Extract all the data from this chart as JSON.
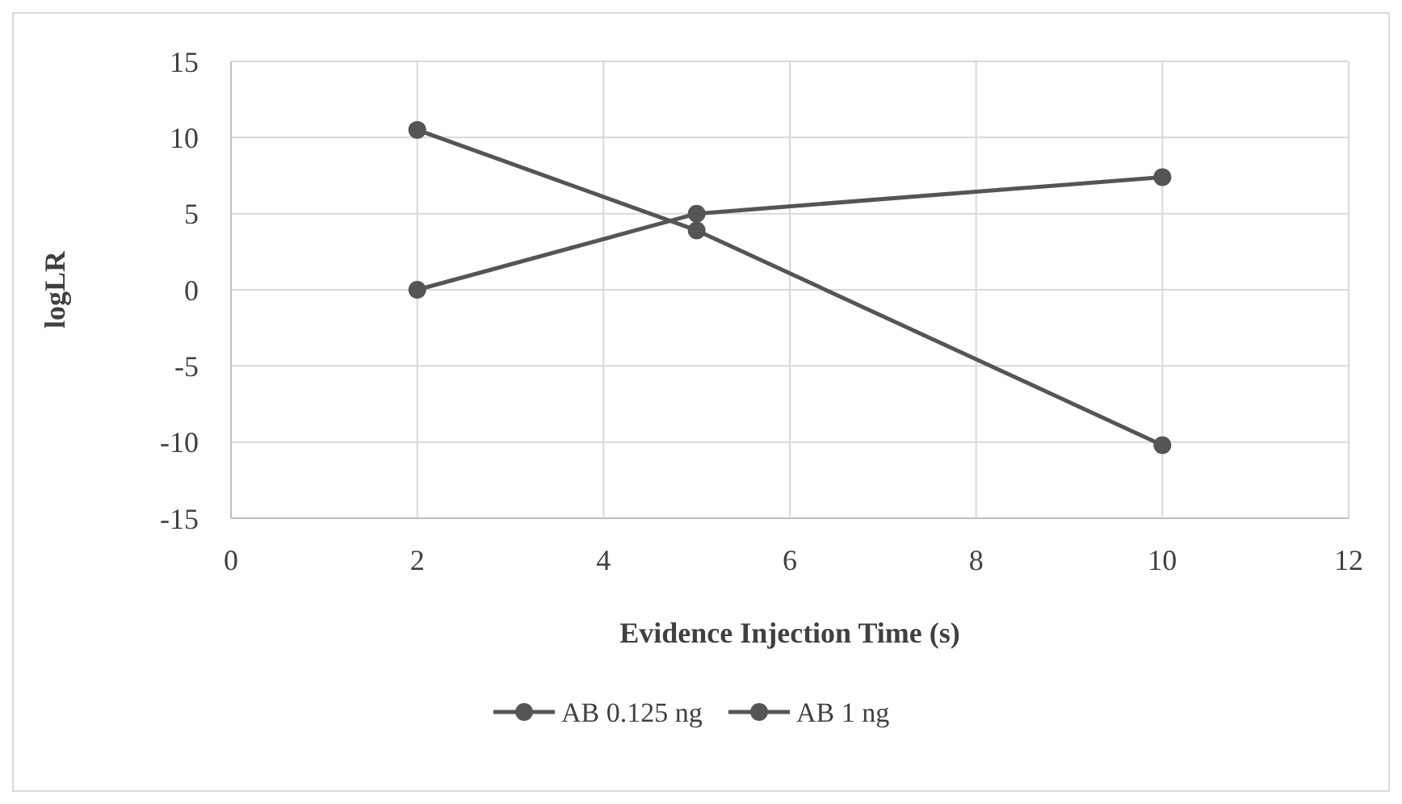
{
  "chart_data": {
    "type": "line",
    "xlabel": "Evidence Injection Time (s)",
    "ylabel": "logLR",
    "x": [
      2,
      5,
      10
    ],
    "series": [
      {
        "name": "AB 0.125 ng",
        "color": "#555555",
        "values": [
          10.5,
          3.9,
          -10.2
        ]
      },
      {
        "name": "AB 1 ng",
        "color": "#555555",
        "values": [
          0,
          5,
          7.4
        ]
      }
    ],
    "xlim": [
      0,
      12
    ],
    "xticks": [
      0,
      2,
      4,
      6,
      8,
      10,
      12
    ],
    "ylim": [
      -15,
      15
    ],
    "yticks": [
      -15,
      -10,
      -5,
      0,
      5,
      10,
      15
    ],
    "grid": true,
    "legend": "bottom",
    "marker": "circle",
    "line_style": "solid"
  }
}
